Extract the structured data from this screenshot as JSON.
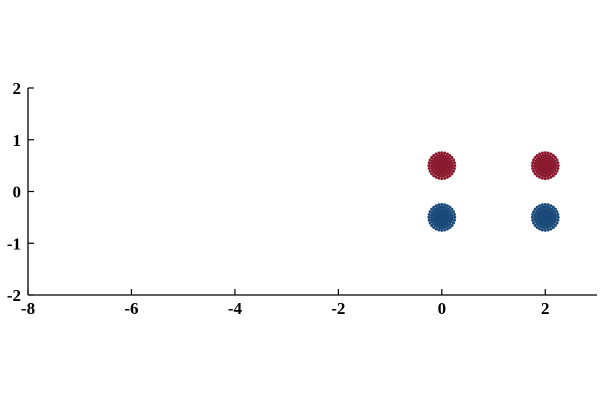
{
  "chart_data": {
    "type": "scatter",
    "title": "",
    "xlabel": "",
    "ylabel": "",
    "xlim": [
      -8,
      3
    ],
    "ylim": [
      -2,
      2
    ],
    "xticks": [
      -8,
      -6,
      -4,
      -2,
      0,
      2
    ],
    "yticks": [
      -2,
      -1,
      0,
      1,
      2
    ],
    "grid": false,
    "legend": "none",
    "ring_radii": [
      0.05,
      0.1,
      0.15,
      0.2,
      0.25
    ],
    "points_per_ring": 28,
    "series": [
      {
        "color": "#8b1a2f",
        "centers": [
          [
            0,
            0.5
          ],
          [
            2,
            0.5
          ]
        ]
      },
      {
        "color": "#1a4a7a",
        "centers": [
          [
            0,
            -0.5
          ],
          [
            2,
            -0.5
          ]
        ]
      }
    ]
  }
}
